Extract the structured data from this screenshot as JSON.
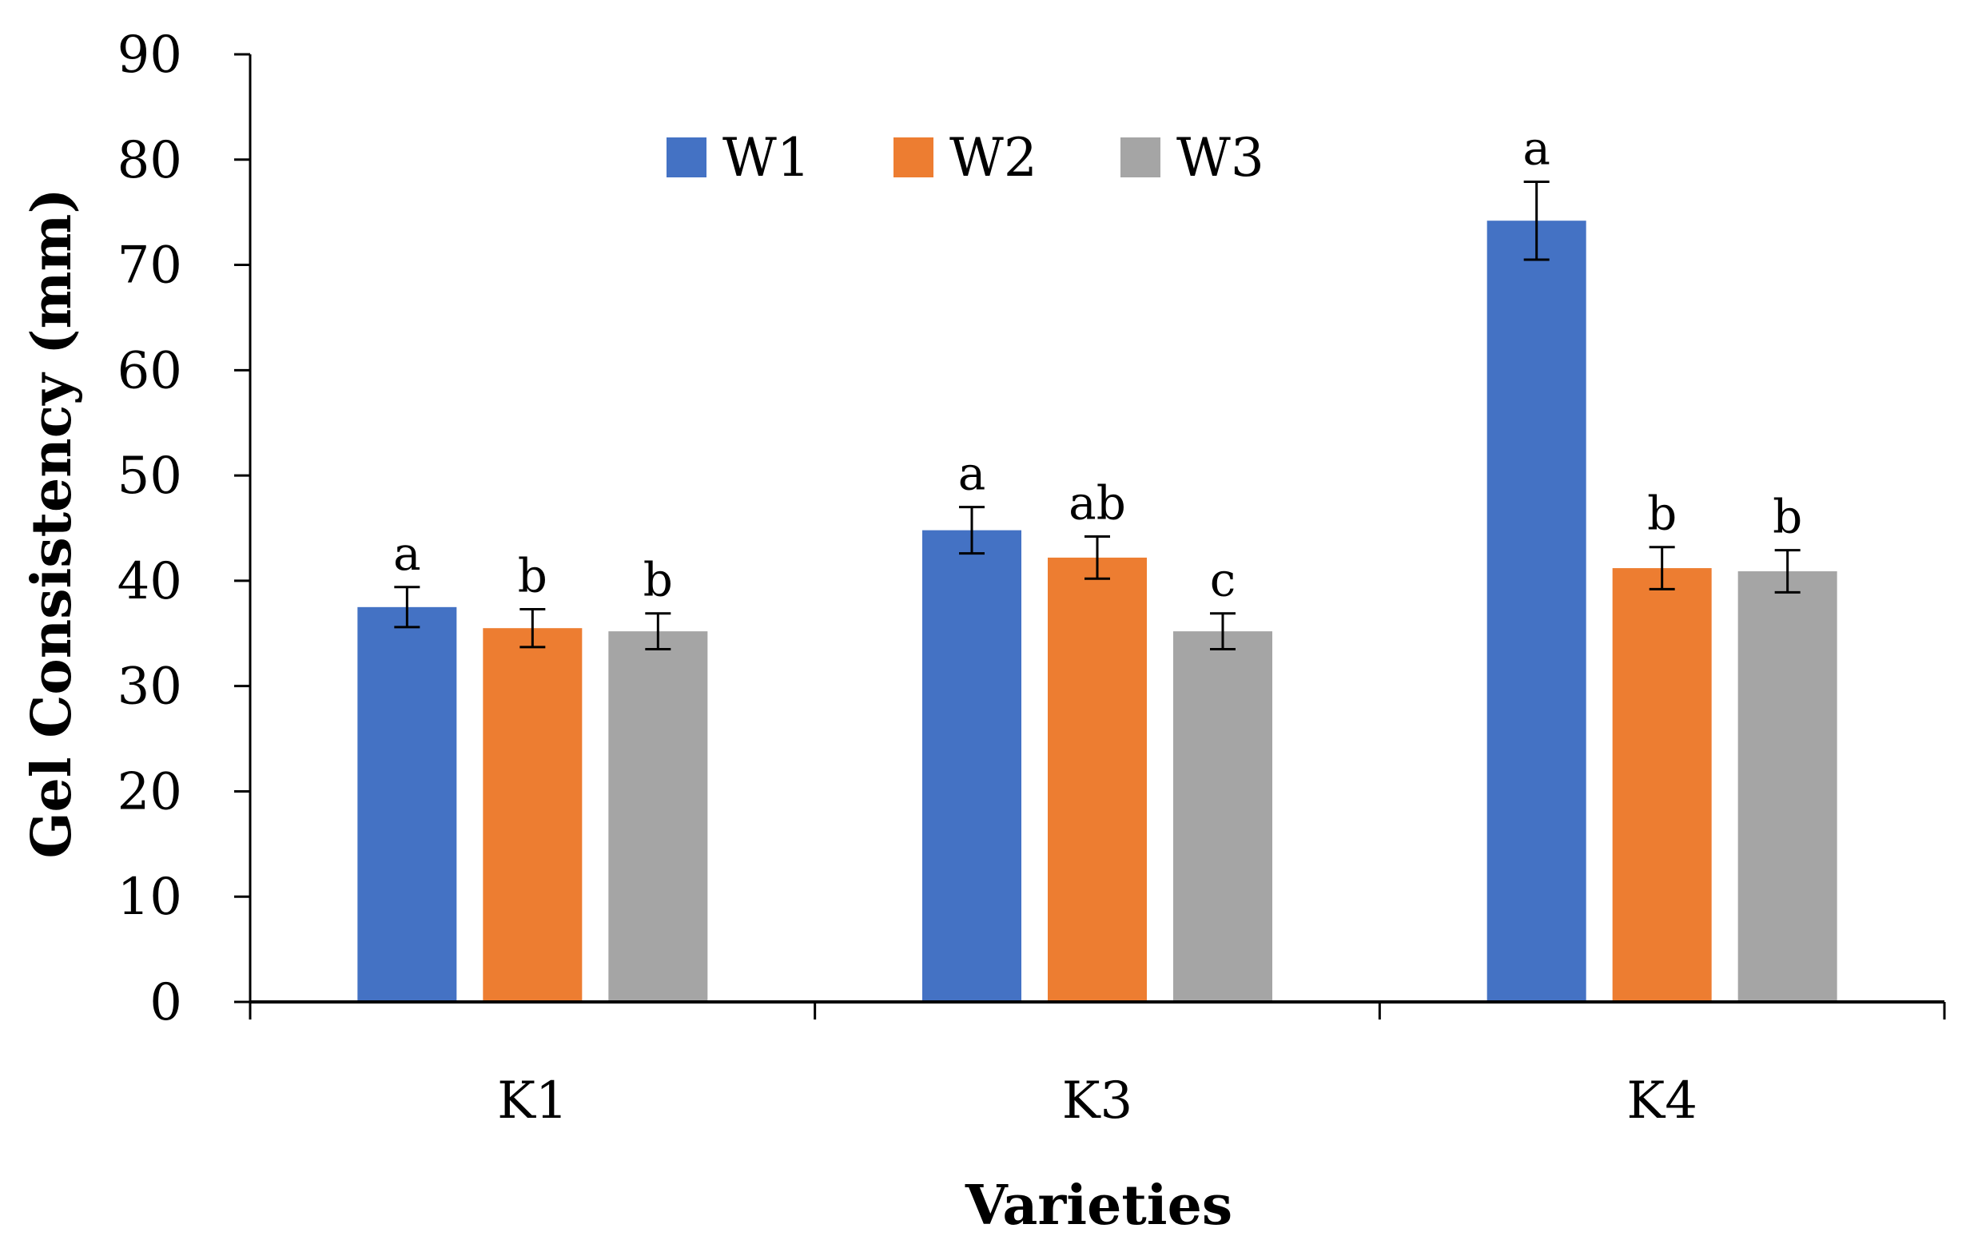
{
  "chart_data": {
    "type": "bar",
    "title": "",
    "xlabel": "Varieties",
    "ylabel": "Gel Consistency (mm)",
    "ylim": [
      0,
      90
    ],
    "yticks": [
      0,
      10,
      20,
      30,
      40,
      50,
      60,
      70,
      80,
      90
    ],
    "categories": [
      "K1",
      "K3",
      "K4"
    ],
    "legend_position": "top-center",
    "series": [
      {
        "name": "W1",
        "color": "#4472C4",
        "values": [
          37.5,
          44.8,
          74.2
        ],
        "errors": [
          1.9,
          2.2,
          3.7
        ],
        "labels": [
          "a",
          "a",
          "a"
        ]
      },
      {
        "name": "W2",
        "color": "#ED7D31",
        "values": [
          35.5,
          42.2,
          41.2
        ],
        "errors": [
          1.8,
          2.0,
          2.0
        ],
        "labels": [
          "b",
          "ab",
          "b"
        ]
      },
      {
        "name": "W3",
        "color": "#A5A5A5",
        "values": [
          35.2,
          35.2,
          40.9
        ],
        "errors": [
          1.7,
          1.7,
          2.0
        ],
        "labels": [
          "b",
          "c",
          "b"
        ]
      }
    ]
  }
}
